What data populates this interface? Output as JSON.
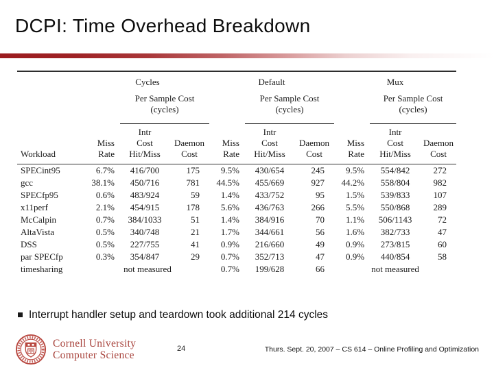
{
  "slide": {
    "title": "DCPI: Time Overhead Breakdown",
    "bullet_text": "Interrupt handler setup and teardown took additional 214 cycles",
    "page_number": "24",
    "footer_right": "Thurs. Sept. 20, 2007 – CS 614 – Online Profiling and Optimization"
  },
  "logo": {
    "line1": "Cornell University",
    "line2": "Computer Science",
    "seal_icon": "cornell-seal-icon",
    "text_color": "#a8433c",
    "seal_color": "#b8473f"
  },
  "colors": {
    "accent_bar_start": "#9b1c1f",
    "accent_bar_end": "#ffffff",
    "table_text": "#1a1a1a"
  },
  "table": {
    "groups": [
      "Cycles",
      "Default",
      "Mux"
    ],
    "per_sample": {
      "line1": "Per Sample Cost",
      "line2": "(cycles)"
    },
    "headers": {
      "workload": "Workload",
      "miss1": "Miss",
      "miss2": "Rate",
      "intr1": "Intr",
      "intr2": "Cost",
      "intr3": "Hit/Miss",
      "daemon1": "Daemon",
      "daemon2": "Cost"
    },
    "not_measured": "not measured",
    "rows": [
      {
        "workload": "SPECint95",
        "cycles": [
          "6.7%",
          "416/700",
          "175"
        ],
        "default": [
          "9.5%",
          "430/654",
          "245"
        ],
        "mux": [
          "9.5%",
          "554/842",
          "272"
        ]
      },
      {
        "workload": "gcc",
        "cycles": [
          "38.1%",
          "450/716",
          "781"
        ],
        "default": [
          "44.5%",
          "455/669",
          "927"
        ],
        "mux": [
          "44.2%",
          "558/804",
          "982"
        ]
      },
      {
        "workload": "SPECfp95",
        "cycles": [
          "0.6%",
          "483/924",
          "59"
        ],
        "default": [
          "1.4%",
          "433/752",
          "95"
        ],
        "mux": [
          "1.5%",
          "539/833",
          "107"
        ]
      },
      {
        "workload": "x11perf",
        "cycles": [
          "2.1%",
          "454/915",
          "178"
        ],
        "default": [
          "5.6%",
          "436/763",
          "266"
        ],
        "mux": [
          "5.5%",
          "550/868",
          "289"
        ]
      },
      {
        "workload": "McCalpin",
        "cycles": [
          "0.7%",
          "384/1033",
          "51"
        ],
        "default": [
          "1.4%",
          "384/916",
          "70"
        ],
        "mux": [
          "1.1%",
          "506/1143",
          "72"
        ]
      },
      {
        "workload": "AltaVista",
        "cycles": [
          "0.5%",
          "340/748",
          "21"
        ],
        "default": [
          "1.7%",
          "344/661",
          "56"
        ],
        "mux": [
          "1.6%",
          "382/733",
          "47"
        ]
      },
      {
        "workload": "DSS",
        "cycles": [
          "0.5%",
          "227/755",
          "41"
        ],
        "default": [
          "0.9%",
          "216/660",
          "49"
        ],
        "mux": [
          "0.9%",
          "273/815",
          "60"
        ]
      },
      {
        "workload": "par SPECfp",
        "cycles": [
          "0.3%",
          "354/847",
          "29"
        ],
        "default": [
          "0.7%",
          "352/713",
          "47"
        ],
        "mux": [
          "0.9%",
          "440/854",
          "58"
        ]
      },
      {
        "workload": "timesharing",
        "cycles": null,
        "default": [
          "0.7%",
          "199/628",
          "66"
        ],
        "mux": null
      }
    ]
  }
}
